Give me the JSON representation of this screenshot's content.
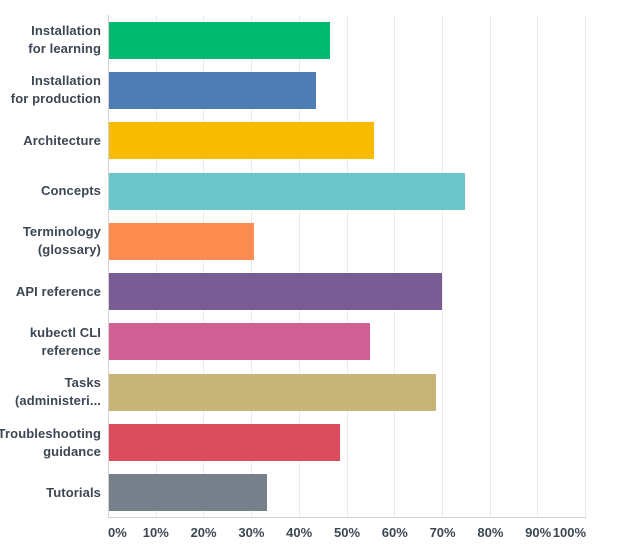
{
  "page": {
    "background": "#ffffff"
  },
  "colors": {
    "axis_line": "#d2d2d2",
    "gridline": "#ebebeb",
    "label_text": "#3d4753"
  },
  "chart_data": {
    "type": "bar",
    "orientation": "horizontal",
    "title": "",
    "xlabel": "",
    "ylabel": "",
    "grid": true,
    "xlim": [
      0,
      100
    ],
    "categories": [
      "Installation for learning",
      "Installation for production",
      "Architecture",
      "Concepts",
      "Terminology (glossary)",
      "API reference",
      "kubectl CLI reference",
      "Tasks (administeri...",
      "Troubleshooting guidance",
      "Tutorials"
    ],
    "category_label_lines": [
      [
        "Installation",
        "for learning"
      ],
      [
        "Installation",
        "for production"
      ],
      [
        "Architecture"
      ],
      [
        "Concepts"
      ],
      [
        "Terminology",
        "(glossary)"
      ],
      [
        "API reference"
      ],
      [
        "kubectl CLI",
        "reference"
      ],
      [
        "Tasks",
        "(administeri..."
      ],
      [
        "Troubleshooting",
        "guidance"
      ],
      [
        "Tutorials"
      ]
    ],
    "values": [
      46.4,
      43.4,
      55.6,
      74.7,
      30.4,
      69.8,
      54.7,
      68.6,
      48.5,
      33.2
    ],
    "unit": "%",
    "bar_colors": [
      "#00ba70",
      "#4e7db5",
      "#f7bc01",
      "#6bc6cb",
      "#fd8c50",
      "#7a5c95",
      "#d05f94",
      "#c7b477",
      "#d94d5c",
      "#76808b"
    ],
    "x_ticks": [
      "0%",
      "10%",
      "20%",
      "30%",
      "40%",
      "50%",
      "60%",
      "70%",
      "80%",
      "90%",
      "100%"
    ],
    "legend": null
  }
}
